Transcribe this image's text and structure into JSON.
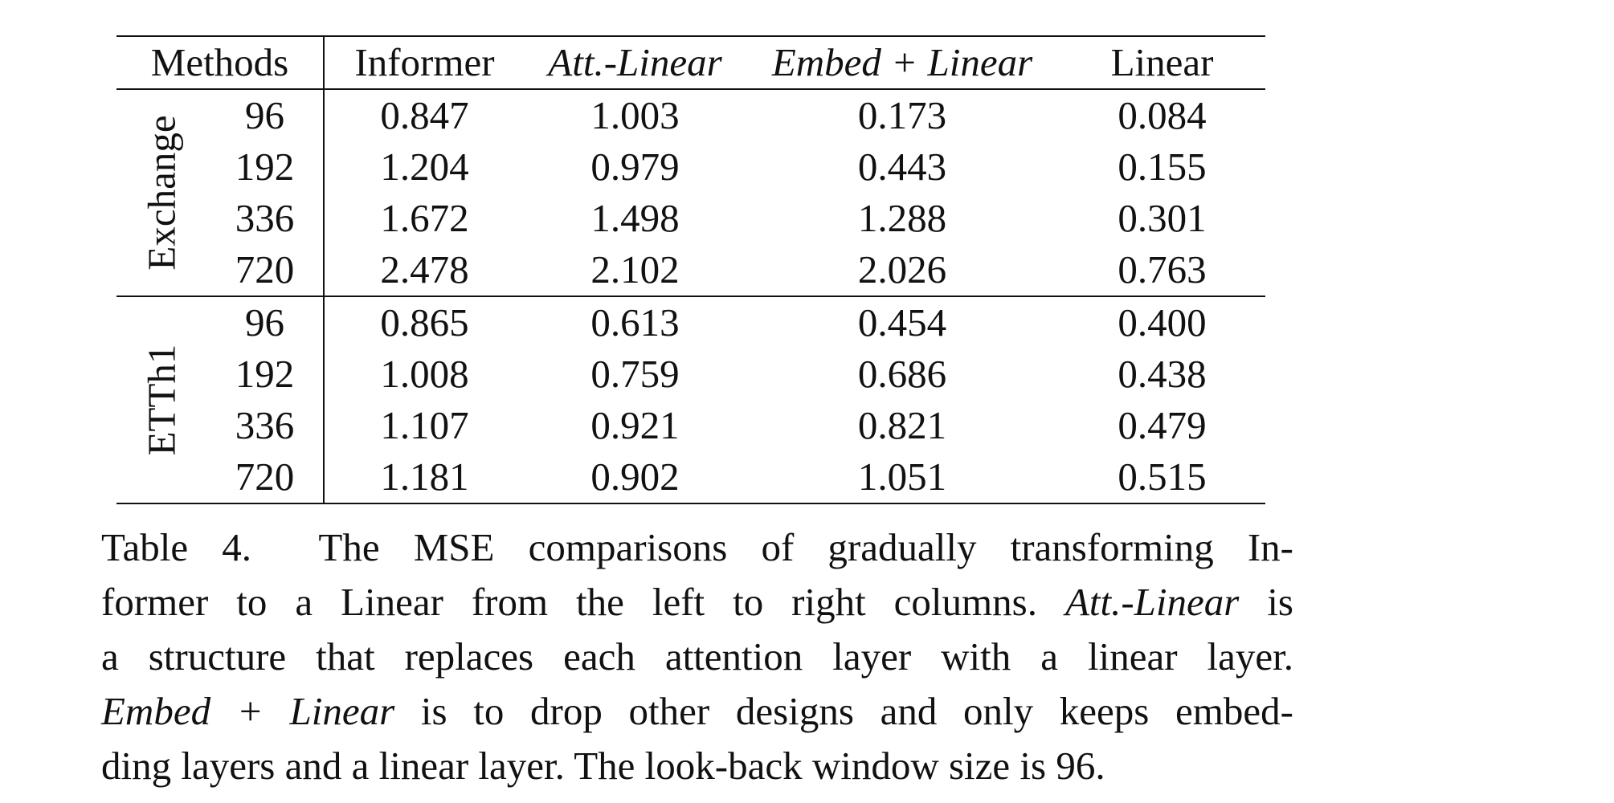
{
  "table": {
    "headers": [
      "Methods",
      "Informer",
      "Att.-Linear",
      "Embed + Linear",
      "Linear"
    ],
    "groups": [
      {
        "name": "Exchange",
        "rows": [
          {
            "len": "96",
            "values": [
              "0.847",
              "1.003",
              "0.173",
              "0.084"
            ]
          },
          {
            "len": "192",
            "values": [
              "1.204",
              "0.979",
              "0.443",
              "0.155"
            ]
          },
          {
            "len": "336",
            "values": [
              "1.672",
              "1.498",
              "1.288",
              "0.301"
            ]
          },
          {
            "len": "720",
            "values": [
              "2.478",
              "2.102",
              "2.026",
              "0.763"
            ]
          }
        ]
      },
      {
        "name": "ETTh1",
        "rows": [
          {
            "len": "96",
            "values": [
              "0.865",
              "0.613",
              "0.454",
              "0.400"
            ]
          },
          {
            "len": "192",
            "values": [
              "1.008",
              "0.759",
              "0.686",
              "0.438"
            ]
          },
          {
            "len": "336",
            "values": [
              "1.107",
              "0.921",
              "0.821",
              "0.479"
            ]
          },
          {
            "len": "720",
            "values": [
              "1.181",
              "0.902",
              "1.051",
              "0.515"
            ]
          }
        ]
      }
    ]
  },
  "caption": {
    "lines": [
      [
        {
          "t": "Table 4.  The MSE comparisons of gradually transforming In-",
          "i": false
        }
      ],
      [
        {
          "t": "former to a Linear from the left to right columns. ",
          "i": false
        },
        {
          "t": "Att.-Linear",
          "i": true
        },
        {
          "t": " is",
          "i": false
        }
      ],
      [
        {
          "t": "a structure that replaces each attention layer with a linear layer.",
          "i": false
        }
      ],
      [
        {
          "t": "Embed + Linear",
          "i": true
        },
        {
          "t": " is to drop other designs and only keeps embed-",
          "i": false
        }
      ],
      [
        {
          "t": "ding layers and a linear layer. The look-back window size is 96.",
          "i": false
        }
      ]
    ]
  }
}
